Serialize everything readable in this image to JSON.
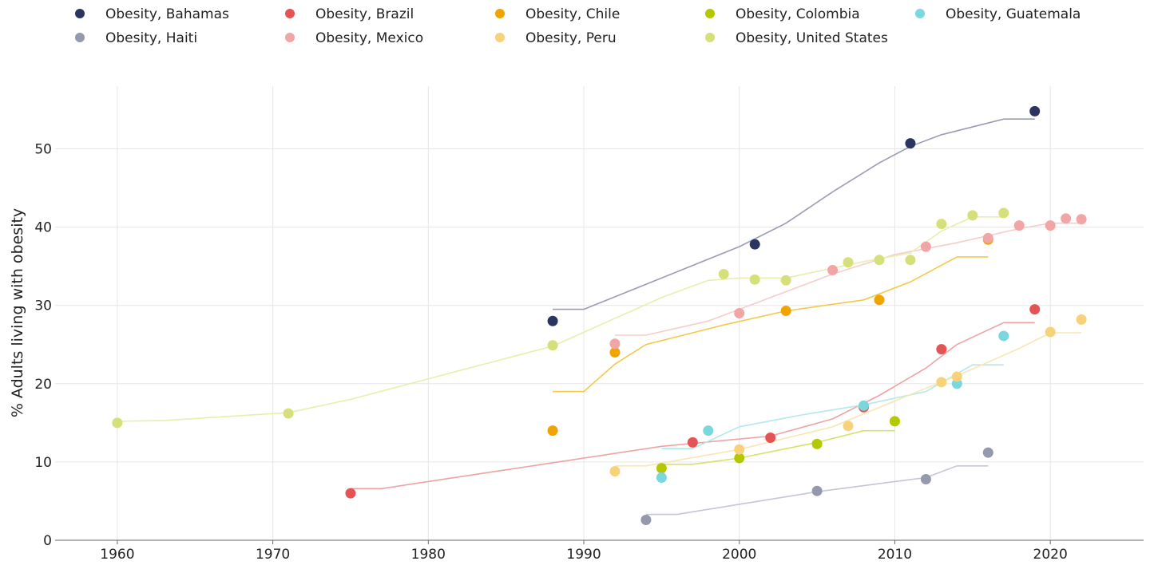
{
  "chart_data": {
    "type": "scatter",
    "title": "",
    "xlabel": "",
    "ylabel": "% Adults living with obesity",
    "xlim": [
      1956,
      2026
    ],
    "ylim": [
      0,
      58
    ],
    "x_ticks": [
      "1960",
      "1970",
      "1980",
      "1990",
      "2000",
      "2010",
      "2020"
    ],
    "y_ticks": [
      "0",
      "10",
      "20",
      "30",
      "40",
      "50"
    ],
    "grid": true,
    "legend_position": "top",
    "series": [
      {
        "name": "Obesity, Bahamas",
        "color": "#2b3660",
        "line_color": "#9a9db3",
        "points": [
          [
            1988,
            28.0
          ],
          [
            2001,
            37.8
          ],
          [
            2011,
            50.7
          ],
          [
            2019,
            54.8
          ]
        ],
        "trend": [
          [
            1988,
            29.5
          ],
          [
            1990,
            29.5
          ],
          [
            1995,
            33.5
          ],
          [
            2000,
            37.5
          ],
          [
            2003,
            40.5
          ],
          [
            2006,
            44.5
          ],
          [
            2009,
            48.2
          ],
          [
            2011,
            50.3
          ],
          [
            2013,
            51.8
          ],
          [
            2017,
            53.8
          ],
          [
            2019,
            53.8
          ]
        ]
      },
      {
        "name": "Obesity, Brazil",
        "color": "#e55454",
        "line_color": "#eda3a3",
        "points": [
          [
            1975,
            6.0
          ],
          [
            1997,
            12.5
          ],
          [
            2002,
            13.1
          ],
          [
            2008,
            17.0
          ],
          [
            2013,
            24.4
          ],
          [
            2019,
            29.5
          ]
        ],
        "trend": [
          [
            1975,
            6.6
          ],
          [
            1977,
            6.6
          ],
          [
            1985,
            9.0
          ],
          [
            1995,
            12.0
          ],
          [
            2002,
            13.3
          ],
          [
            2006,
            15.5
          ],
          [
            2009,
            18.5
          ],
          [
            2012,
            22.0
          ],
          [
            2014,
            25.0
          ],
          [
            2017,
            27.8
          ],
          [
            2019,
            27.8
          ]
        ]
      },
      {
        "name": "Obesity, Chile",
        "color": "#f0a400",
        "line_color": "#f3c94b",
        "points": [
          [
            1988,
            14.0
          ],
          [
            1992,
            24.0
          ],
          [
            2003,
            29.3
          ],
          [
            2009,
            30.7
          ],
          [
            2016,
            38.4
          ]
        ],
        "trend": [
          [
            1988,
            19.0
          ],
          [
            1990,
            19.0
          ],
          [
            1992,
            22.5
          ],
          [
            1994,
            25.0
          ],
          [
            1999,
            27.5
          ],
          [
            2003,
            29.3
          ],
          [
            2008,
            30.7
          ],
          [
            2011,
            33.0
          ],
          [
            2014,
            36.2
          ],
          [
            2016,
            36.2
          ]
        ]
      },
      {
        "name": "Obesity, Colombia",
        "color": "#b4c800",
        "line_color": "#d7e16b",
        "points": [
          [
            1995,
            9.2
          ],
          [
            2000,
            10.5
          ],
          [
            2005,
            12.3
          ],
          [
            2010,
            15.2
          ]
        ],
        "trend": [
          [
            1995,
            9.7
          ],
          [
            1997,
            9.7
          ],
          [
            2000,
            10.5
          ],
          [
            2005,
            12.5
          ],
          [
            2008,
            14.0
          ],
          [
            2010,
            14.0
          ]
        ]
      },
      {
        "name": "Obesity, Guatemala",
        "color": "#7ad7dd",
        "line_color": "#b4e8ec",
        "points": [
          [
            1995,
            8.0
          ],
          [
            1998,
            14.0
          ],
          [
            2008,
            17.2
          ],
          [
            2014,
            20.0
          ],
          [
            2017,
            26.1
          ]
        ],
        "trend": [
          [
            1995,
            11.7
          ],
          [
            1997,
            11.7
          ],
          [
            2000,
            14.5
          ],
          [
            2004,
            16.0
          ],
          [
            2008,
            17.3
          ],
          [
            2012,
            19.0
          ],
          [
            2015,
            22.4
          ],
          [
            2017,
            22.4
          ]
        ]
      },
      {
        "name": "Obesity, Haiti",
        "color": "#9499ad",
        "line_color": "#c4c7d4",
        "points": [
          [
            1994,
            2.6
          ],
          [
            2005,
            6.3
          ],
          [
            2012,
            7.8
          ],
          [
            2016,
            11.2
          ]
        ],
        "trend": [
          [
            1994,
            3.3
          ],
          [
            1996,
            3.3
          ],
          [
            2000,
            4.6
          ],
          [
            2005,
            6.2
          ],
          [
            2010,
            7.5
          ],
          [
            2012,
            8.0
          ],
          [
            2014,
            9.5
          ],
          [
            2016,
            9.5
          ]
        ]
      },
      {
        "name": "Obesity, Mexico",
        "color": "#f2a5a5",
        "line_color": "#f7cccc",
        "points": [
          [
            1992,
            25.1
          ],
          [
            2000,
            29.0
          ],
          [
            2006,
            34.5
          ],
          [
            2012,
            37.5
          ],
          [
            2016,
            38.6
          ],
          [
            2018,
            40.2
          ],
          [
            2020,
            40.2
          ],
          [
            2021,
            41.1
          ],
          [
            2022,
            41.0
          ]
        ],
        "trend": [
          [
            1992,
            26.2
          ],
          [
            1994,
            26.2
          ],
          [
            1998,
            28.0
          ],
          [
            2002,
            31.0
          ],
          [
            2006,
            34.0
          ],
          [
            2010,
            36.5
          ],
          [
            2014,
            38.0
          ],
          [
            2018,
            39.8
          ],
          [
            2020,
            40.5
          ],
          [
            2022,
            40.5
          ]
        ]
      },
      {
        "name": "Obesity, Peru",
        "color": "#f7d27a",
        "line_color": "#f8e6b4",
        "points": [
          [
            1992,
            8.8
          ],
          [
            2000,
            11.6
          ],
          [
            2007,
            14.6
          ],
          [
            2013,
            20.2
          ],
          [
            2014,
            20.9
          ],
          [
            2020,
            26.6
          ],
          [
            2022,
            28.2
          ]
        ],
        "trend": [
          [
            1992,
            9.5
          ],
          [
            1994,
            9.5
          ],
          [
            2000,
            11.6
          ],
          [
            2006,
            14.5
          ],
          [
            2010,
            17.8
          ],
          [
            2014,
            21.0
          ],
          [
            2018,
            24.5
          ],
          [
            2020,
            26.5
          ],
          [
            2022,
            26.5
          ]
        ]
      },
      {
        "name": "Obesity, United States",
        "color": "#d6e07a",
        "line_color": "#e8eeae",
        "points": [
          [
            1960,
            15.0
          ],
          [
            1971,
            16.2
          ],
          [
            1988,
            24.9
          ],
          [
            1999,
            34.0
          ],
          [
            2001,
            33.3
          ],
          [
            2003,
            33.2
          ],
          [
            2007,
            35.5
          ],
          [
            2009,
            35.8
          ],
          [
            2011,
            35.8
          ],
          [
            2013,
            40.4
          ],
          [
            2015,
            41.5
          ],
          [
            2017,
            41.8
          ]
        ],
        "trend": [
          [
            1960,
            15.2
          ],
          [
            1963,
            15.3
          ],
          [
            1971,
            16.3
          ],
          [
            1975,
            18.0
          ],
          [
            1988,
            24.8
          ],
          [
            1995,
            31.0
          ],
          [
            1998,
            33.2
          ],
          [
            2000,
            33.5
          ],
          [
            2003,
            33.5
          ],
          [
            2008,
            35.6
          ],
          [
            2011,
            36.7
          ],
          [
            2013,
            39.5
          ],
          [
            2015,
            41.3
          ],
          [
            2017,
            41.3
          ]
        ]
      }
    ]
  }
}
